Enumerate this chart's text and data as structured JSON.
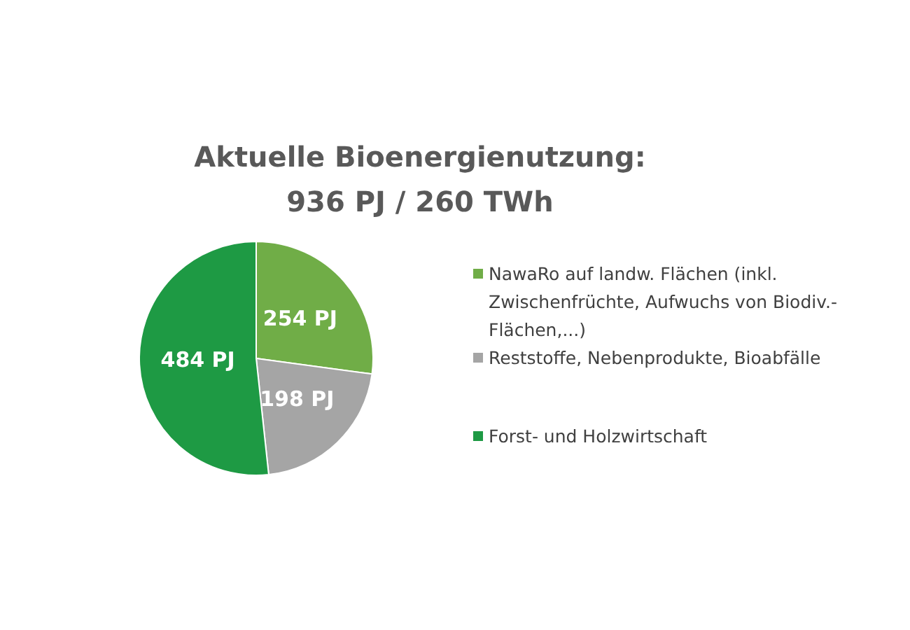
{
  "chart_data": {
    "type": "pie",
    "title": "Aktuelle Bioenergienutzung:\n936 PJ / 260 TWh",
    "categories": [
      "NawaRo auf landw. Flächen (inkl. Zwischenfrüchte, Aufwuchs von Biodiv.-Flächen,...)",
      "Reststoffe, Nebenprodukte, Bioabfälle",
      "Forst- und Holzwirtschaft"
    ],
    "values": [
      254,
      198,
      484
    ],
    "colors": [
      "#70ad47",
      "#a5a5a5",
      "#1e9a44"
    ],
    "value_labels": [
      "254 PJ",
      "198 PJ",
      "484 PJ"
    ],
    "legend": "right"
  }
}
